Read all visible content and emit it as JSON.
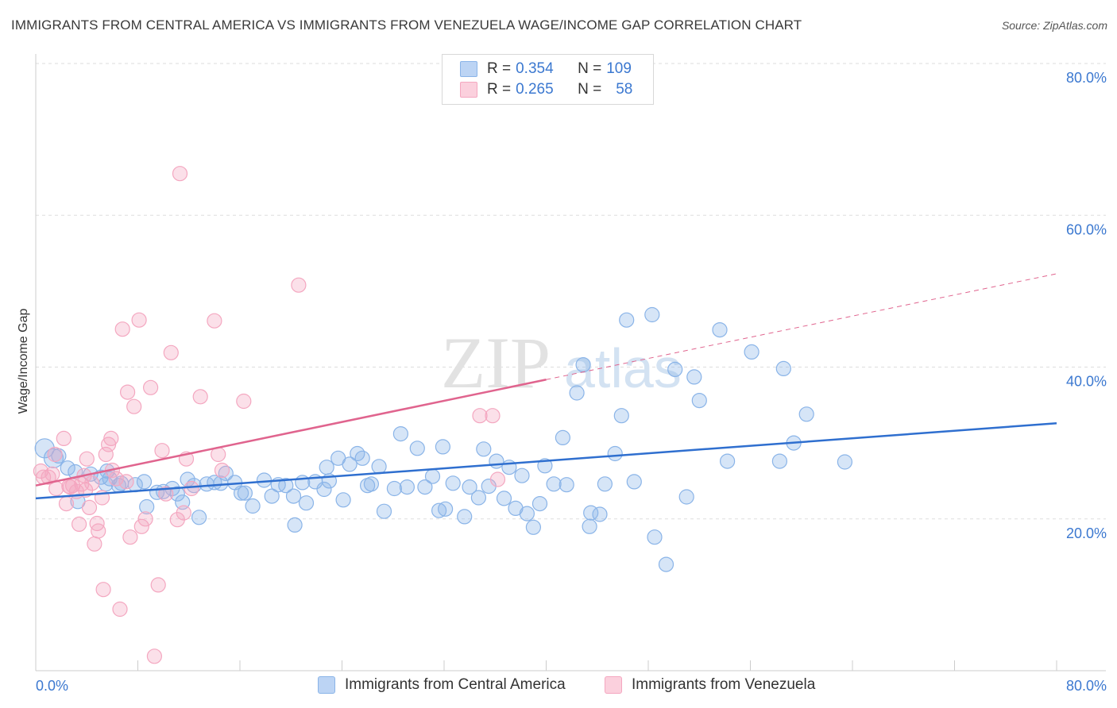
{
  "title": "IMMIGRANTS FROM CENTRAL AMERICA VS IMMIGRANTS FROM VENEZUELA WAGE/INCOME GAP CORRELATION CHART",
  "source": "Source: ZipAtlas.com",
  "watermark": {
    "part1": "ZIP",
    "part2": "atlas"
  },
  "legend": {
    "rows": [
      {
        "r_label": "R = ",
        "r_value": "0.354",
        "n_label": "N = ",
        "n_value": "109"
      },
      {
        "r_label": "R = ",
        "r_value": "0.265",
        "n_label": "N = ",
        "n_value": "58"
      }
    ]
  },
  "chart_data": {
    "type": "scatter",
    "title": "IMMIGRANTS FROM CENTRAL AMERICA VS IMMIGRANTS FROM VENEZUELA WAGE/INCOME GAP CORRELATION CHART",
    "xlabel": "",
    "ylabel": "Wage/Income Gap",
    "xlim": [
      0,
      80
    ],
    "ylim": [
      0,
      80
    ],
    "x_tick_labels": [
      "0.0%",
      "80.0%"
    ],
    "y_tick_labels": [
      "20.0%",
      "40.0%",
      "60.0%",
      "80.0%"
    ],
    "y_ticks": [
      20,
      40,
      60,
      80
    ],
    "grid": "horizontal dashed",
    "legend_position": "top-center",
    "series": [
      {
        "name": "Immigrants from Central America",
        "color": "#8ab4e8",
        "line_color": "#2f6fcf",
        "trend": {
          "x0": 0,
          "y0": 22.7,
          "x1": 80,
          "y1": 32.6,
          "dashed_from": null
        },
        "points": [
          [
            0.7,
            29.3
          ],
          [
            1.4,
            28.0
          ],
          [
            1.8,
            28.3
          ],
          [
            2.5,
            26.7
          ],
          [
            3.3,
            22.3
          ],
          [
            3.1,
            26.2
          ],
          [
            4.3,
            25.9
          ],
          [
            5.6,
            26.3
          ],
          [
            5.1,
            25.5
          ],
          [
            5.8,
            25.3
          ],
          [
            5.5,
            24.6
          ],
          [
            6.5,
            24.4
          ],
          [
            6.7,
            24.7
          ],
          [
            7.8,
            24.5
          ],
          [
            8.5,
            24.9
          ],
          [
            8.7,
            21.6
          ],
          [
            9.5,
            23.5
          ],
          [
            10.0,
            23.6
          ],
          [
            10.7,
            24.0
          ],
          [
            11.5,
            22.2
          ],
          [
            11.1,
            23.3
          ],
          [
            11.9,
            25.2
          ],
          [
            12.4,
            24.4
          ],
          [
            12.8,
            20.2
          ],
          [
            13.4,
            24.6
          ],
          [
            14.0,
            24.8
          ],
          [
            14.5,
            24.7
          ],
          [
            14.9,
            26.0
          ],
          [
            15.6,
            24.8
          ],
          [
            16.1,
            23.4
          ],
          [
            16.4,
            23.4
          ],
          [
            17.0,
            21.7
          ],
          [
            17.9,
            25.1
          ],
          [
            18.5,
            23.0
          ],
          [
            19.0,
            24.5
          ],
          [
            19.6,
            24.4
          ],
          [
            20.2,
            23.0
          ],
          [
            20.3,
            19.2
          ],
          [
            20.9,
            24.8
          ],
          [
            21.2,
            22.1
          ],
          [
            21.9,
            24.9
          ],
          [
            22.6,
            23.9
          ],
          [
            22.8,
            26.8
          ],
          [
            23.0,
            25.0
          ],
          [
            23.7,
            28.0
          ],
          [
            24.1,
            22.5
          ],
          [
            24.6,
            27.2
          ],
          [
            25.2,
            28.6
          ],
          [
            25.6,
            28.0
          ],
          [
            26.0,
            24.4
          ],
          [
            26.3,
            24.6
          ],
          [
            26.9,
            26.9
          ],
          [
            27.3,
            21.0
          ],
          [
            28.1,
            24.0
          ],
          [
            28.6,
            31.2
          ],
          [
            29.1,
            24.2
          ],
          [
            29.9,
            29.3
          ],
          [
            30.5,
            24.2
          ],
          [
            31.1,
            25.6
          ],
          [
            31.6,
            21.1
          ],
          [
            32.1,
            21.3
          ],
          [
            31.9,
            29.5
          ],
          [
            32.7,
            24.7
          ],
          [
            33.6,
            20.3
          ],
          [
            34.0,
            24.2
          ],
          [
            34.7,
            22.8
          ],
          [
            35.1,
            29.2
          ],
          [
            35.5,
            24.3
          ],
          [
            36.1,
            27.6
          ],
          [
            36.7,
            22.7
          ],
          [
            37.1,
            26.8
          ],
          [
            37.6,
            21.4
          ],
          [
            38.1,
            25.7
          ],
          [
            38.5,
            20.7
          ],
          [
            39.0,
            18.9
          ],
          [
            39.5,
            22.0
          ],
          [
            39.9,
            27.0
          ],
          [
            40.6,
            24.6
          ],
          [
            41.3,
            30.7
          ],
          [
            41.6,
            24.5
          ],
          [
            42.4,
            36.6
          ],
          [
            42.9,
            40.3
          ],
          [
            43.4,
            19.0
          ],
          [
            43.5,
            20.8
          ],
          [
            44.2,
            20.6
          ],
          [
            44.6,
            24.6
          ],
          [
            45.4,
            28.6
          ],
          [
            45.9,
            33.6
          ],
          [
            46.3,
            46.2
          ],
          [
            46.9,
            24.9
          ],
          [
            48.3,
            46.9
          ],
          [
            48.5,
            17.6
          ],
          [
            49.4,
            14.0
          ],
          [
            50.1,
            39.7
          ],
          [
            51.0,
            22.9
          ],
          [
            51.6,
            38.7
          ],
          [
            52.0,
            35.6
          ],
          [
            53.6,
            44.9
          ],
          [
            54.2,
            27.6
          ],
          [
            56.1,
            42.0
          ],
          [
            58.3,
            27.6
          ],
          [
            58.6,
            39.8
          ],
          [
            59.4,
            30.0
          ],
          [
            60.4,
            33.8
          ],
          [
            63.4,
            27.5
          ]
        ]
      },
      {
        "name": "Immigrants from Venezuela",
        "color": "#f4a7c0",
        "line_color": "#e0648e",
        "trend": {
          "x0": 0,
          "y0": 24.4,
          "x1": 80,
          "y1": 52.3,
          "dashed_from": 40
        },
        "points": [
          [
            0.4,
            26.3
          ],
          [
            0.6,
            25.5
          ],
          [
            1.0,
            25.5
          ],
          [
            1.3,
            25.9
          ],
          [
            1.6,
            24.0
          ],
          [
            2.2,
            30.6
          ],
          [
            2.4,
            22.0
          ],
          [
            2.7,
            24.2
          ],
          [
            2.9,
            24.4
          ],
          [
            3.2,
            23.6
          ],
          [
            3.4,
            19.3
          ],
          [
            3.6,
            24.6
          ],
          [
            3.9,
            23.8
          ],
          [
            4.0,
            27.9
          ],
          [
            4.2,
            21.5
          ],
          [
            4.6,
            16.7
          ],
          [
            4.8,
            19.4
          ],
          [
            4.9,
            18.4
          ],
          [
            5.2,
            22.8
          ],
          [
            5.3,
            10.7
          ],
          [
            5.5,
            28.5
          ],
          [
            5.7,
            29.8
          ],
          [
            5.9,
            30.6
          ],
          [
            6.0,
            26.4
          ],
          [
            6.3,
            25.3
          ],
          [
            6.6,
            8.1
          ],
          [
            6.8,
            45.0
          ],
          [
            7.1,
            24.9
          ],
          [
            7.4,
            17.6
          ],
          [
            7.7,
            34.8
          ],
          [
            7.2,
            36.7
          ],
          [
            8.1,
            46.2
          ],
          [
            8.3,
            19.0
          ],
          [
            8.6,
            20.0
          ],
          [
            9.0,
            37.3
          ],
          [
            9.3,
            1.9
          ],
          [
            9.6,
            11.3
          ],
          [
            9.9,
            29.0
          ],
          [
            10.2,
            23.3
          ],
          [
            10.6,
            41.9
          ],
          [
            11.1,
            19.9
          ],
          [
            11.3,
            65.5
          ],
          [
            11.6,
            20.8
          ],
          [
            11.8,
            27.9
          ],
          [
            12.2,
            24.0
          ],
          [
            12.9,
            36.1
          ],
          [
            14.0,
            46.1
          ],
          [
            14.3,
            28.5
          ],
          [
            14.6,
            26.4
          ],
          [
            16.3,
            35.5
          ],
          [
            20.6,
            50.8
          ],
          [
            34.8,
            33.6
          ],
          [
            35.8,
            33.6
          ],
          [
            36.2,
            25.2
          ],
          [
            1.5,
            28.5
          ],
          [
            2.6,
            24.3
          ],
          [
            3.8,
            25.7
          ],
          [
            4.4,
            24.7
          ]
        ]
      }
    ]
  }
}
